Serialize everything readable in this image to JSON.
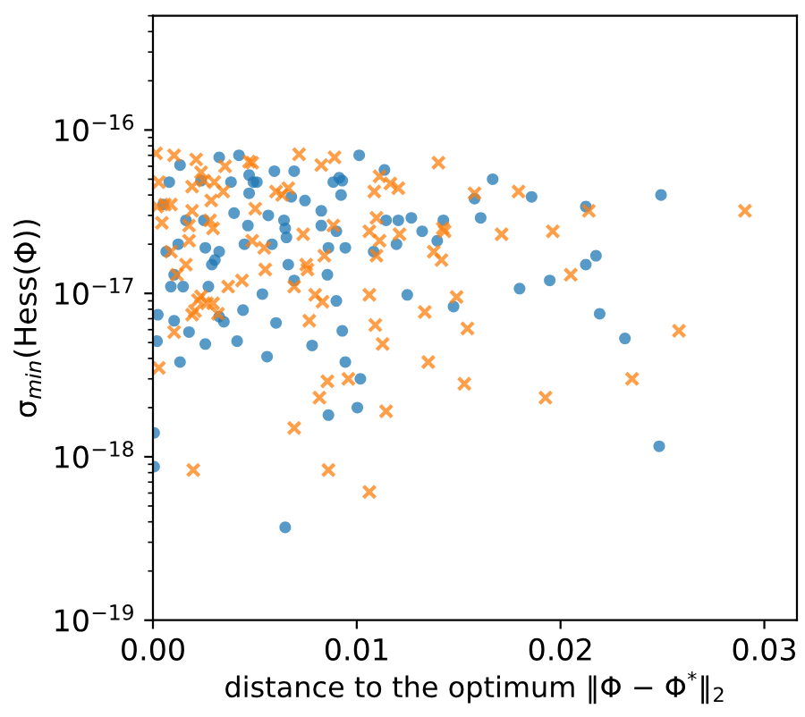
{
  "chart_data": {
    "type": "scatter",
    "xlabel": "distance to the optimum ‖Φ − Φ$^{*}$‖$_{2}$",
    "ylabel": "σ$_{min}$(Hess(Φ))",
    "log": "y",
    "xlim": [
      0,
      0.0316
    ],
    "xticks": [
      {
        "value": 0,
        "label": "0.00"
      },
      {
        "value": 0.01,
        "label": "0.01"
      },
      {
        "value": 0.02,
        "label": "0.02"
      },
      {
        "value": 0.03,
        "label": "0.03"
      }
    ],
    "ylim": [
      1e-19,
      5e-16
    ],
    "yticks": [
      {
        "value": 1e-19,
        "label": "10$^{−19}$"
      },
      {
        "value": 1e-18,
        "label": "10$^{−18}$"
      },
      {
        "value": 1e-17,
        "label": "10$^{−17}$"
      },
      {
        "value": 1e-16,
        "label": "10$^{−16}$"
      }
    ],
    "series": [
      {
        "color": "#1f77b4",
        "marker": "circle",
        "x": [
          0.00325,
          0.00422,
          0.01012,
          0.00133,
          0.0008,
          0.00236,
          0.00383,
          0.00472,
          0.00493,
          0.0051,
          0.00596,
          0.00693,
          0.00885,
          0.00914,
          0.00929,
          0.0005,
          0.00472,
          0.00679,
          0.00746,
          0.00923,
          0.00398,
          0.00566,
          0.00643,
          0.00649,
          0.00466,
          0.00826,
          0.00826,
          0.009,
          0.00162,
          0.0025,
          0.00065,
          0.00124,
          0.00257,
          0.00325,
          0.00304,
          0.00289,
          0.00449,
          0.00584,
          0.00655,
          0.00861,
          0.00944,
          0.00104,
          0.00148,
          0.00088,
          0.00272,
          0.00664,
          0.00693,
          0.00856,
          0.00537,
          0.009,
          0.00024,
          0.00104,
          0.00325,
          0.00348,
          0.00442,
          0.00604,
          0.00177,
          0.0002,
          0.00257,
          0.00413,
          0.00929,
          0.00133,
          0.0056,
          0.00781,
          0.00944,
          0.01018,
          0.00861,
          0.01003,
          6e-05,
          6e-05,
          0.00649,
          0.01136,
          0.01667,
          0.01858,
          0.01578,
          0.01608,
          0.01144,
          0.01204,
          0.01268,
          0.01425,
          0.01321,
          0.01395,
          0.01083,
          0.01195,
          0.02124,
          0.01799,
          0.01947,
          0.02124,
          0.01248,
          0.01475,
          0.02493,
          0.02174,
          0.02192,
          0.02316,
          0.02484
        ],
        "values": [
          6.8e-17,
          7e-17,
          7e-17,
          6.1e-17,
          4.8e-17,
          4.9e-17,
          4.8e-17,
          5.3e-17,
          4.8e-17,
          4.8e-17,
          5.6e-17,
          5.6e-17,
          4.8e-17,
          5.1e-17,
          4.9e-17,
          3.5e-17,
          4.1e-17,
          3.9e-17,
          3.7e-17,
          4e-17,
          3.1e-17,
          3e-17,
          2.8e-17,
          2.5e-17,
          2.6e-17,
          3.2e-17,
          2.6e-17,
          2.4e-17,
          2.8e-17,
          2.8e-17,
          1.8e-17,
          2e-17,
          1.9e-17,
          1.8e-17,
          1.6e-17,
          1.5e-17,
          2e-17,
          2e-17,
          2.2e-17,
          1.9e-17,
          1.9e-17,
          1.3e-17,
          1.1e-17,
          1.1e-17,
          1.1e-17,
          1.5e-17,
          1.2e-17,
          1.3e-17,
          9.9e-18,
          9e-18,
          7.4e-18,
          6.8e-18,
          7.2e-18,
          6.7e-18,
          7.9e-18,
          6.6e-18,
          5.8e-18,
          5.1e-18,
          4.9e-18,
          5.1e-18,
          5.9e-18,
          3.8e-18,
          4.1e-18,
          4.8e-18,
          3.8e-18,
          3e-18,
          1.8e-18,
          2e-18,
          1.4e-18,
          8.7e-19,
          3.7e-19,
          5.7e-17,
          5e-17,
          3.9e-17,
          3.8e-17,
          2.9e-17,
          2.8e-17,
          2.8e-17,
          2.9e-17,
          2.8e-17,
          2.4e-17,
          2.1e-17,
          1.8e-17,
          2e-17,
          3.4e-17,
          1.07e-17,
          1.2e-17,
          1.5e-17,
          9.8e-18,
          8.3e-18,
          4e-17,
          1.7e-17,
          7.5e-18,
          5.3e-18,
          1.16e-18
        ]
      },
      {
        "color": "#ff7f0e",
        "marker": "cross",
        "x": [
          0.00015,
          0.00104,
          0.00212,
          0.00354,
          0.00236,
          0.00472,
          0.00487,
          0.00717,
          0.00826,
          0.00891,
          0.00029,
          0.00192,
          0.0025,
          0.00301,
          0.00286,
          0.00345,
          0.00604,
          0.00634,
          0.00664,
          0.0002,
          0.00059,
          0.00088,
          0.00044,
          0.00192,
          0.0028,
          0.00295,
          0.00502,
          0.00177,
          0.00737,
          0.00885,
          0.01062,
          0.00177,
          0.00088,
          0.00487,
          0.00546,
          0.00162,
          0.00118,
          0.00551,
          0.00752,
          0.00758,
          0.00693,
          0.00841,
          0.00369,
          0.00437,
          0.00236,
          0.00221,
          0.00265,
          0.00295,
          0.00206,
          0.00192,
          0.00319,
          0.00796,
          0.00832,
          0.01062,
          0.00104,
          0.00767,
          0.00029,
          0.00856,
          0.00959,
          0.00817,
          0.00693,
          0.00198,
          0.00861,
          0.01062,
          0.01401,
          0.01112,
          0.01165,
          0.01204,
          0.01086,
          0.01578,
          0.01794,
          0.01097,
          0.0121,
          0.01422,
          0.01431,
          0.01711,
          0.01962,
          0.01112,
          0.01378,
          0.01097,
          0.01416,
          0.0205,
          0.01334,
          0.0149,
          0.01091,
          0.01543,
          0.01127,
          0.01351,
          0.01528,
          0.01926,
          0.01144,
          0.02139,
          0.02905,
          0.02581,
          0.02351
        ],
        "values": [
          7.2e-17,
          7e-17,
          6.6e-17,
          6e-17,
          5.5e-17,
          6.4e-17,
          6.3e-17,
          7.1e-17,
          6.1e-17,
          6.8e-17,
          4.8e-17,
          4.5e-17,
          4.9e-17,
          4.8e-17,
          3.7e-17,
          4.2e-17,
          4.2e-17,
          4e-17,
          4.4e-17,
          3.4e-17,
          3.5e-17,
          3.5e-17,
          2.7e-17,
          3.2e-17,
          2.8e-17,
          2.5e-17,
          3.3e-17,
          2.6e-17,
          2.3e-17,
          2.6e-17,
          2.4e-17,
          2.1e-17,
          1.8e-17,
          2.1e-17,
          1.9e-17,
          1.5e-17,
          1.3e-17,
          1.4e-17,
          1.5e-17,
          1.4e-17,
          1.1e-17,
          1.7e-17,
          1.1e-17,
          1.2e-17,
          9.6e-18,
          9.1e-18,
          8.7e-18,
          8.7e-18,
          7.8e-18,
          7.4e-18,
          7.5e-18,
          9.8e-18,
          8.9e-18,
          9.8e-18,
          5.8e-18,
          6.8e-18,
          3.5e-18,
          2.9e-18,
          3e-18,
          2.3e-18,
          1.5e-18,
          8.3e-19,
          8.3e-19,
          6.1e-19,
          6.3e-17,
          5.2e-17,
          4.7e-17,
          4.4e-17,
          4.2e-17,
          4.1e-17,
          4.2e-17,
          2.9e-17,
          2.3e-17,
          2.5e-17,
          2.4e-17,
          2.3e-17,
          2.4e-17,
          2.1e-17,
          1.8e-17,
          1.7e-17,
          1.6e-17,
          1.3e-17,
          7.7e-18,
          9.5e-18,
          6.4e-18,
          6.1e-18,
          4.9e-18,
          3.8e-18,
          2.8e-18,
          2.3e-18,
          1.9e-18,
          3.2e-17,
          3.2e-17,
          5.9e-18,
          3e-18
        ]
      }
    ]
  }
}
